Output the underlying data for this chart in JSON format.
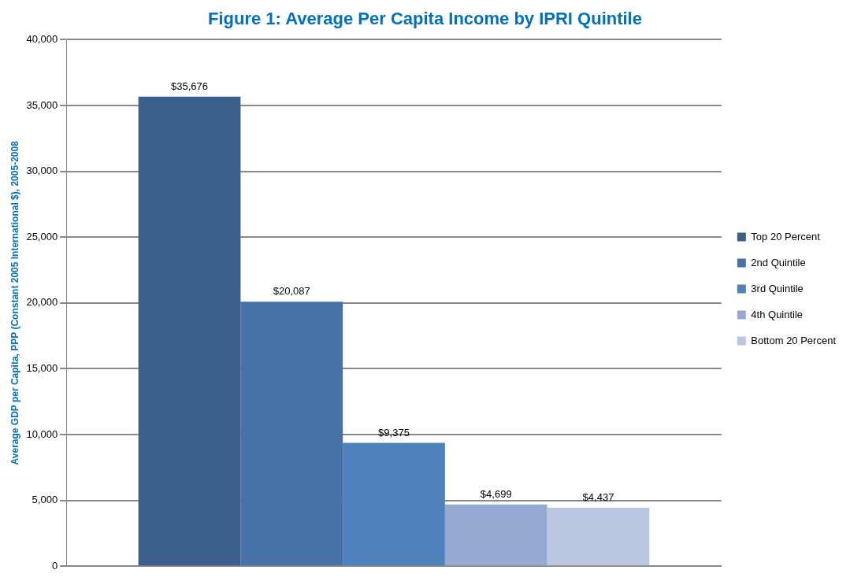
{
  "chart_data": {
    "type": "bar",
    "title": "Figure 1: Average Per Capita Income by IPRI Quintile",
    "ylabel": "Average GDP per Capita, PPP (Constant 2005 International $), 2005-2008",
    "categories": [
      null
    ],
    "series": [
      {
        "name": "Top 20 Percent",
        "color": "#3a5f8c",
        "values": [
          35676
        ],
        "value_labels": [
          "$35,676"
        ]
      },
      {
        "name": "2nd Quintile",
        "color": "#4672a8",
        "values": [
          20087
        ],
        "value_labels": [
          "$20,087"
        ]
      },
      {
        "name": "3rd Quintile",
        "color": "#4f81bd",
        "values": [
          9375
        ],
        "value_labels": [
          "$9,375"
        ]
      },
      {
        "name": "4th Quintile",
        "color": "#95a9d1",
        "values": [
          4699
        ],
        "value_labels": [
          "$4,699"
        ]
      },
      {
        "name": "Bottom 20 Percent",
        "color": "#b9c7e0",
        "values": [
          4437
        ],
        "value_labels": [
          "$4,437"
        ]
      }
    ],
    "ylim": [
      0,
      40000
    ],
    "yticks": [
      {
        "value": 0,
        "label": "0"
      },
      {
        "value": 5000,
        "label": "5,000"
      },
      {
        "value": 10000,
        "label": "10,000"
      },
      {
        "value": 15000,
        "label": "15,000"
      },
      {
        "value": 20000,
        "label": "20,000"
      },
      {
        "value": 25000,
        "label": "25,000"
      },
      {
        "value": 30000,
        "label": "30,000"
      },
      {
        "value": 35000,
        "label": "35,000"
      },
      {
        "value": 40000,
        "label": "40,000"
      }
    ],
    "grid": "y",
    "legend": "right"
  }
}
